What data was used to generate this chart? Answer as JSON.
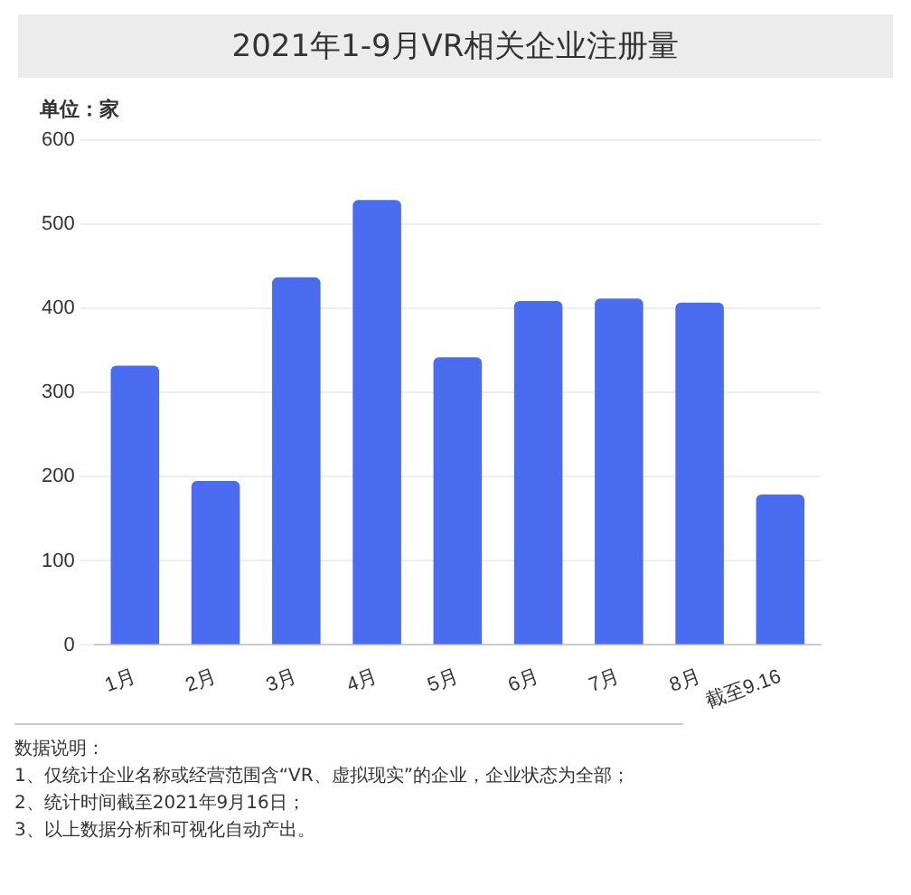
{
  "chart_data": {
    "type": "bar",
    "title": "2021年1-9月VR相关企业注册量",
    "ylabel": "单位：家",
    "categories": [
      "1月",
      "2月",
      "3月",
      "4月",
      "5月",
      "6月",
      "7月",
      "8月",
      "截至9.16"
    ],
    "values": [
      332,
      195,
      437,
      529,
      342,
      409,
      412,
      407,
      179
    ],
    "color": "#4a6cf0",
    "ylim": [
      0,
      600
    ],
    "yticks": [
      0,
      100,
      200,
      300,
      400,
      500,
      600
    ],
    "grid": "y",
    "annotations": [
      "数据说明：",
      "1、仅统计企业名称或经营范围含“VR、虚拟现实”的企业，企业状态为全部；",
      "2、统计时间截至2021年9月16日；",
      "3、以上数据分析和可视化自动产出。"
    ]
  }
}
